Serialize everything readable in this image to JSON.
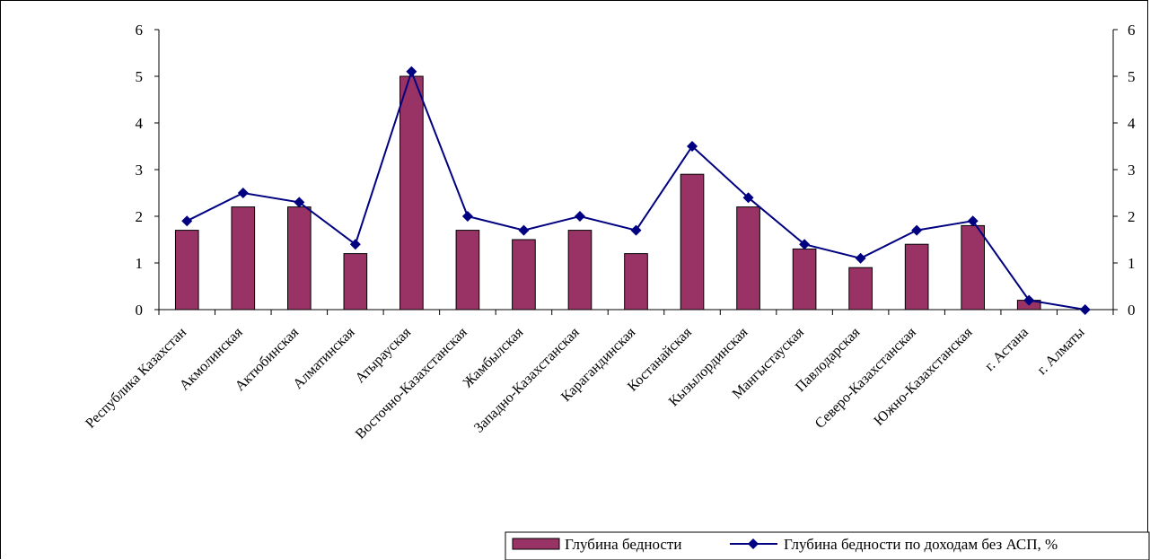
{
  "chart_data": {
    "type": "bar",
    "categories": [
      "Республика Казахстан",
      "Акмолинская",
      "Актюбинская",
      "Алматинская",
      "Атырауская",
      "Восточно-Казахстанская",
      "Жамбылская",
      "Западно-Казахстанская",
      "Карагандинская",
      "Костанайская",
      "Кызылординская",
      "Мангыстауская",
      "Павлодарская",
      "Северо-Казахстанская",
      "Южно-Казахстанская",
      "г. Астана",
      "г. Алматы"
    ],
    "series": [
      {
        "name": "Глубина бедности",
        "type": "bar",
        "axis": "left",
        "color": "#993366",
        "values": [
          1.7,
          2.2,
          2.2,
          1.2,
          5.0,
          1.7,
          1.5,
          1.7,
          1.2,
          2.9,
          2.2,
          1.3,
          0.9,
          1.4,
          1.8,
          0.2,
          0.0
        ]
      },
      {
        "name": "Глубина бедности по доходам без АСП, %",
        "type": "line",
        "axis": "right",
        "color": "#000080",
        "marker": "diamond",
        "values": [
          1.9,
          2.5,
          2.3,
          1.4,
          5.1,
          2.0,
          1.7,
          2.0,
          1.7,
          3.5,
          2.4,
          1.4,
          1.1,
          1.7,
          1.9,
          0.2,
          0.0
        ]
      }
    ],
    "y_left": {
      "min": 0,
      "max": 6,
      "ticks": [
        "0",
        "1",
        "2",
        "3",
        "4",
        "5",
        "6"
      ]
    },
    "y_right": {
      "min": 0,
      "max": 6,
      "ticks": [
        "0",
        "1",
        "2",
        "3",
        "4",
        "5",
        "6"
      ]
    },
    "grid": false,
    "legend_position": "bottom-right"
  }
}
